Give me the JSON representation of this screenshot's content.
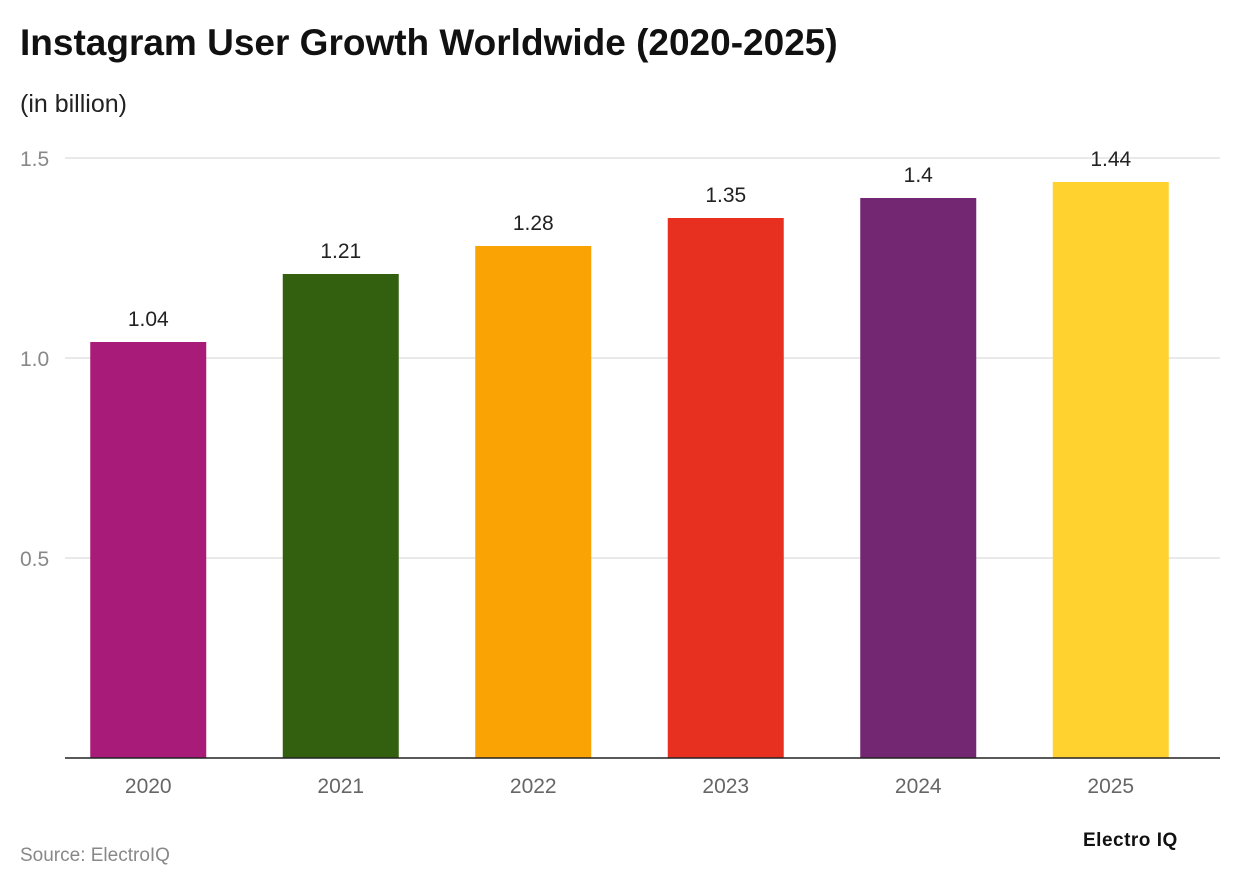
{
  "title": "Instagram User Growth Worldwide (2020-2025)",
  "subtitle": "(in billion)",
  "source": "Source: ElectroIQ",
  "logo": "Electro IQ",
  "chart_data": {
    "type": "bar",
    "categories": [
      "2020",
      "2021",
      "2022",
      "2023",
      "2024",
      "2025"
    ],
    "values": [
      1.04,
      1.21,
      1.28,
      1.35,
      1.4,
      1.44
    ],
    "data_labels": [
      "1.04",
      "1.21",
      "1.28",
      "1.35",
      "1.4",
      "1.44"
    ],
    "colors": [
      "#A91B78",
      "#33600F",
      "#F9A304",
      "#E83021",
      "#732773",
      "#FFD22F"
    ],
    "yticks": [
      "0.5",
      "1.0",
      "1.5"
    ],
    "ytick_values": [
      0.5,
      1.0,
      1.5
    ],
    "ylim": [
      0,
      1.5
    ],
    "grid": true,
    "xlabel": "",
    "ylabel": ""
  }
}
